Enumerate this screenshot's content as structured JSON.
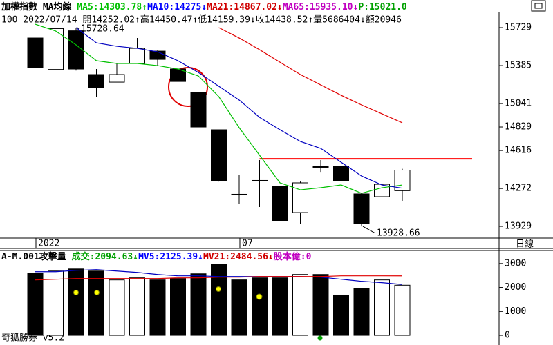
{
  "header": {
    "row1": [
      {
        "text": "加權指數 MA均線 ",
        "color": "#000000"
      },
      {
        "text": "MA5:14303.78↑",
        "color": "#00c000"
      },
      {
        "text": "MA10:14275↓",
        "color": "#0000ff"
      },
      {
        "text": "MA21:14867.02↓",
        "color": "#d00000"
      },
      {
        "text": "MA65:15935.10↓",
        "color": "#c000c0"
      },
      {
        "text": "P:15021.0",
        "color": "#00a000"
      }
    ],
    "row2": "100 2022/07/14 開14252.02↑高14450.47↑低14159.39↓收14438.52↑量5686404↓額20946",
    "period": "日線",
    "footer": "奇狐勝券 v5.2"
  },
  "chart_data": [
    {
      "type": "candlestick",
      "categories": [
        "2022",
        null,
        null,
        null,
        null,
        null,
        null,
        null,
        null,
        null,
        "07",
        null,
        null,
        null,
        null,
        null,
        null,
        null,
        null
      ],
      "open": [
        15635,
        15350,
        15700,
        15304,
        15235,
        15404,
        15516,
        15354,
        15141,
        14804,
        14220,
        14345,
        14291,
        14054,
        14470,
        14473,
        14223,
        14198,
        14252.02
      ],
      "high": [
        15635,
        15725,
        15728.64,
        15354,
        15404,
        15635,
        15529,
        15366,
        15141,
        14804,
        14398,
        14529,
        14291,
        14335,
        14529,
        14473,
        14229,
        14385,
        14450.47
      ],
      "low": [
        15366,
        15350,
        15340,
        15104,
        15235,
        15404,
        15379,
        15229,
        14829,
        14335,
        14135,
        14104,
        13979,
        13948,
        14416,
        14341,
        13928.66,
        14198,
        14159.39
      ],
      "close": [
        15366,
        15720,
        15354,
        15185,
        15304,
        15541,
        15441,
        15241,
        14829,
        14341,
        14216,
        14340,
        13979,
        14323,
        14466,
        14341,
        13954,
        14310,
        14438.52
      ],
      "up_color": "#ffffff",
      "down_color": "#000000",
      "series": [
        {
          "name": "MA5",
          "color": "#00c000",
          "values": [
            15760,
            15698,
            15573,
            15429,
            15404,
            15404,
            15385,
            15354,
            15291,
            15104,
            14823,
            14573,
            14323,
            14260,
            14279,
            14304,
            14229,
            14279,
            14303.78
          ]
        },
        {
          "name": "MA10",
          "color": "#0000c0",
          "values": [
            null,
            null,
            15729,
            15591,
            15560,
            15541,
            15510,
            15429,
            15323,
            15198,
            15073,
            14916,
            14804,
            14698,
            14635,
            14510,
            14385,
            14304,
            14275
          ]
        },
        {
          "name": "MA21",
          "color": "#e00000",
          "values": [
            null,
            null,
            null,
            null,
            null,
            null,
            null,
            null,
            null,
            15729,
            15635,
            15529,
            15416,
            15304,
            15210,
            15116,
            15029,
            14948,
            14867.02
          ]
        }
      ],
      "hline": {
        "value": 14541,
        "color": "#ff0000"
      },
      "annotations": [
        15728.64,
        13928.66
      ],
      "ylim": [
        13823,
        15854
      ],
      "yticks": [
        15729,
        15385,
        15041,
        14829,
        14616,
        14272,
        13929
      ]
    },
    {
      "type": "bar",
      "title": [
        {
          "text": "A-M.001攻擊量 ",
          "color": "#000000"
        },
        {
          "text": "成交:2094.63↓",
          "color": "#00a000"
        },
        {
          "text": "MV5:2125.39↓",
          "color": "#0000ff"
        },
        {
          "text": "MV21:2484.56↓",
          "color": "#d00000"
        },
        {
          "text": "股本億:0",
          "color": "#c000c0"
        }
      ],
      "values": [
        2600,
        2686,
        2771,
        2686,
        2314,
        2400,
        2314,
        2371,
        2571,
        2971,
        2314,
        2400,
        2400,
        2543,
        2543,
        1686,
        1971,
        2314,
        2094.63
      ],
      "series": [
        {
          "name": "MV5",
          "color": "#0000c0",
          "values": [
            2657,
            2657,
            2714,
            2743,
            2686,
            2629,
            2543,
            2486,
            2486,
            2457,
            2457,
            2457,
            2457,
            2457,
            2429,
            2343,
            2257,
            2200,
            2125.39
          ]
        },
        {
          "name": "MV21",
          "color": "#e00000",
          "values": [
            2314,
            2343,
            2371,
            2371,
            2371,
            2371,
            2371,
            2400,
            2400,
            2429,
            2429,
            2457,
            2457,
            2457,
            2457,
            2486,
            2486,
            2486,
            2484.56
          ]
        }
      ],
      "ylim": [
        -114,
        3543
      ],
      "yticks": [
        3000,
        2000,
        1000,
        0
      ]
    }
  ]
}
